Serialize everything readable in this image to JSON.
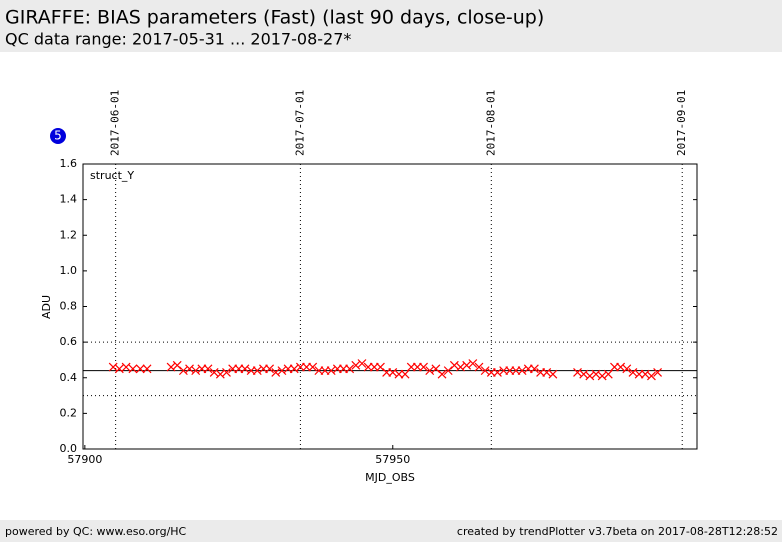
{
  "header": {
    "title": "GIRAFFE: BIAS parameters (Fast) (last 90 days, close-up)",
    "subtitle": "QC data range: 2017-05-31 ... 2017-08-27*"
  },
  "footer": {
    "left": "powered by QC: www.eso.org/HC",
    "right": "created by trendPlotter v3.7beta on 2017-08-28T12:28:52"
  },
  "badge": "5",
  "chart_data": {
    "type": "scatter",
    "title": "struct_Y",
    "x_label": "MJD_OBS",
    "y_label": "ADU",
    "xlim": [
      57899.7,
      57999.4
    ],
    "ylim": [
      0,
      1.6
    ],
    "xticks": [
      57900,
      57950
    ],
    "yticks": [
      {
        "value": 0,
        "label": "0.0"
      },
      0.2,
      0.4,
      0.6,
      0.8,
      {
        "value": 1,
        "label": "1.0"
      },
      1.2,
      1.4,
      1.6
    ],
    "x2ticks": [
      {
        "value": 57905,
        "label": "2017-06-01"
      },
      {
        "value": 57935,
        "label": "2017-07-01"
      },
      {
        "value": 57966,
        "label": "2017-08-01"
      },
      {
        "value": 57997,
        "label": "2017-09-01"
      }
    ],
    "reference_lines": [
      {
        "value": 0.44,
        "style": "solid"
      },
      {
        "value": 0.6,
        "style": "dotted"
      },
      {
        "value": 0.3,
        "style": "dotted"
      }
    ],
    "series": [
      {
        "color": "#ff0000",
        "marker": "x",
        "x": [
          57904.6,
          57905.6,
          57906.7,
          57907.8,
          57909.0,
          57910.1,
          57914,
          57915,
          57916,
          57917,
          57918,
          57919,
          57920,
          57921,
          57922,
          57923,
          57924,
          57925,
          57926,
          57927,
          57928,
          57929,
          57930,
          57931,
          57932,
          57933,
          57934,
          57935,
          57936,
          57937,
          57938,
          57939,
          57940,
          57941,
          57942,
          57943,
          57944,
          57945,
          57946,
          57947,
          57948,
          57949,
          57950,
          57951,
          57952,
          57953,
          57954,
          57955,
          57956,
          57957,
          57958,
          57959,
          57960,
          57961,
          57962,
          57963,
          57964,
          57965,
          57966,
          57967,
          57968,
          57969,
          57970,
          57971,
          57972,
          57973,
          57974,
          57975,
          57976,
          57980,
          57981,
          57982,
          57983,
          57984,
          57985,
          57986,
          57987,
          57988,
          57989,
          57990,
          57991,
          57992,
          57993
        ],
        "values": [
          0.46,
          0.45,
          0.46,
          0.45,
          0.45,
          0.45,
          0.46,
          0.47,
          0.44,
          0.45,
          0.44,
          0.45,
          0.45,
          0.43,
          0.42,
          0.43,
          0.45,
          0.45,
          0.45,
          0.44,
          0.44,
          0.45,
          0.45,
          0.43,
          0.44,
          0.45,
          0.45,
          0.46,
          0.46,
          0.46,
          0.44,
          0.44,
          0.44,
          0.45,
          0.45,
          0.45,
          0.47,
          0.48,
          0.46,
          0.46,
          0.46,
          0.43,
          0.43,
          0.42,
          0.42,
          0.46,
          0.46,
          0.46,
          0.44,
          0.45,
          0.42,
          0.44,
          0.47,
          0.46,
          0.47,
          0.48,
          0.46,
          0.44,
          0.43,
          0.43,
          0.44,
          0.44,
          0.44,
          0.44,
          0.45,
          0.45,
          0.43,
          0.43,
          0.42,
          0.43,
          0.42,
          0.41,
          0.42,
          0.41,
          0.42,
          0.46,
          0.46,
          0.45,
          0.43,
          0.42,
          0.42,
          0.41,
          0.43
        ]
      }
    ]
  }
}
